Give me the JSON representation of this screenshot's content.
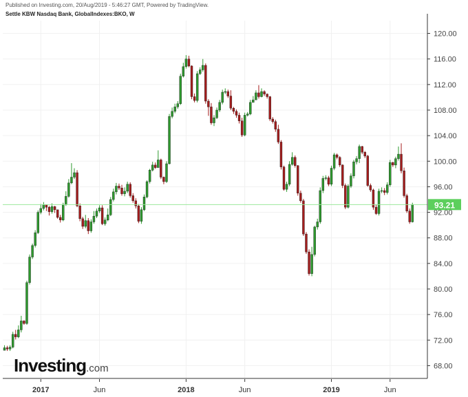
{
  "header": {
    "published": "Published on Investing.com, 20/Aug/2019 - 5:46:27 GMT, Powered by TradingView.",
    "subtitle": "Settle KBW Nasdaq Bank, GlobalIndexes:BKO, W"
  },
  "logo": {
    "word": "Investing",
    "suffix": ".com"
  },
  "colors": {
    "up": "#2e9a2e",
    "down": "#a51d1d",
    "price_line": "#9be89b",
    "price_badge": "#5ccf5c",
    "grid": "#f0f0f0",
    "axis": "#333333"
  },
  "chart_data": {
    "type": "candlestick",
    "title": "Settle KBW Nasdaq Bank, GlobalIndexes:BKO, W",
    "xlabel": "",
    "ylabel": "",
    "ylim": [
      66,
      122
    ],
    "y_ticks": [
      "68.00",
      "72.00",
      "76.00",
      "80.00",
      "84.00",
      "88.00",
      "92.00",
      "96.00",
      "100.00",
      "104.00",
      "108.00",
      "112.00",
      "116.00",
      "120.00"
    ],
    "x_ticks": [
      {
        "label": "2017",
        "bold": true,
        "week": 13
      },
      {
        "label": "Jun",
        "bold": false,
        "week": 34
      },
      {
        "label": "2018",
        "bold": true,
        "week": 65
      },
      {
        "label": "Jun",
        "bold": false,
        "week": 86
      },
      {
        "label": "2019",
        "bold": true,
        "week": 117
      },
      {
        "label": "Jun",
        "bold": false,
        "week": 138
      }
    ],
    "last_price": "93.21",
    "last_value": 93.21,
    "grid": true,
    "closes": [
      70.8,
      70.6,
      70.9,
      72.9,
      72.5,
      73.6,
      75.0,
      74.6,
      81.0,
      85.0,
      86.8,
      88.8,
      92.0,
      92.6,
      93.2,
      92.8,
      92.1,
      92.9,
      92.4,
      91.2,
      90.8,
      93.2,
      94.5,
      96.6,
      97.5,
      98.2,
      93.0,
      91.0,
      89.8,
      90.7,
      89.1,
      90.5,
      91.4,
      92.2,
      92.7,
      90.2,
      90.8,
      91.6,
      94.0,
      95.2,
      96.1,
      95.8,
      94.9,
      95.3,
      96.4,
      94.6,
      93.8,
      93.0,
      90.6,
      92.4,
      94.4,
      96.8,
      98.6,
      99.4,
      99.0,
      100.2,
      97.5,
      96.8,
      99.6,
      107.0,
      107.8,
      108.5,
      109.0,
      113.3,
      114.8,
      116.0,
      114.9,
      110.1,
      109.5,
      113.7,
      114.3,
      115.0,
      109.4,
      108.5,
      106.0,
      106.8,
      108.0,
      109.2,
      110.8,
      110.9,
      110.2,
      108.3,
      107.8,
      107.2,
      106.3,
      104.1,
      107.2,
      107.4,
      109.2,
      109.6,
      110.7,
      110.1,
      110.9,
      110.5,
      110.1,
      106.6,
      106.2,
      105.0,
      103.0,
      99.1,
      95.6,
      96.4,
      99.5,
      100.6,
      99.3,
      95.0,
      93.8,
      88.6,
      85.8,
      82.4,
      85.4,
      89.7,
      90.5,
      95.4,
      97.3,
      97.4,
      96.4,
      98.9,
      101.0,
      100.6,
      99.4,
      96.2,
      92.8,
      96.1,
      97.7,
      99.9,
      100.4,
      102.3,
      101.4,
      100.8,
      96.2,
      95.5,
      92.8,
      91.8,
      95.3,
      95.4,
      95.1,
      96.3,
      99.8,
      99.4,
      100.4,
      101.1,
      98.5,
      94.6,
      92.2,
      90.5,
      93.21
    ],
    "highs": [
      71.2,
      71.1,
      71.2,
      73.3,
      73.6,
      74.3,
      75.8,
      75.1,
      81.3,
      85.4,
      87.1,
      89.2,
      92.3,
      93.3,
      93.6,
      93.2,
      93.0,
      93.4,
      93.0,
      92.1,
      91.6,
      93.5,
      95.3,
      97.2,
      99.7,
      98.9,
      98.6,
      93.4,
      91.3,
      91.6,
      91.1,
      90.9,
      92.2,
      92.6,
      93.1,
      93.1,
      91.2,
      92.6,
      94.4,
      95.7,
      96.6,
      96.5,
      96.3,
      95.9,
      96.8,
      96.7,
      95.0,
      94.2,
      93.3,
      92.8,
      94.8,
      97.0,
      98.8,
      99.9,
      99.8,
      101.7,
      100.4,
      97.6,
      100.0,
      107.4,
      108.4,
      109.0,
      109.4,
      113.7,
      115.4,
      116.6,
      116.5,
      115.0,
      110.6,
      114.1,
      114.7,
      116.0,
      115.3,
      109.7,
      109.1,
      107.2,
      108.4,
      109.6,
      111.2,
      111.4,
      111.2,
      111.1,
      108.5,
      108.1,
      107.6,
      106.8,
      107.6,
      107.7,
      109.6,
      110.2,
      111.1,
      111.9,
      111.4,
      111.1,
      110.6,
      110.2,
      106.9,
      106.5,
      105.7,
      103.3,
      99.3,
      96.8,
      100.0,
      101.4,
      100.9,
      99.4,
      95.4,
      94.1,
      88.9,
      86.2,
      86.6,
      89.9,
      91.0,
      95.9,
      97.7,
      97.8,
      97.7,
      99.3,
      101.3,
      101.2,
      100.8,
      99.5,
      96.5,
      96.4,
      98.1,
      100.2,
      100.8,
      102.6,
      102.4,
      101.6,
      101.0,
      96.5,
      95.7,
      93.2,
      95.7,
      95.9,
      95.8,
      96.7,
      100.2,
      99.9,
      100.7,
      102.3,
      102.8,
      99.0,
      94.9,
      92.6,
      93.5
    ],
    "lows": [
      70.5,
      70.3,
      70.3,
      70.7,
      72.1,
      72.3,
      73.2,
      74.4,
      74.4,
      80.7,
      84.7,
      86.5,
      88.6,
      91.7,
      92.3,
      92.2,
      91.5,
      91.8,
      91.9,
      91.0,
      90.4,
      90.6,
      93.0,
      94.3,
      96.4,
      97.2,
      92.8,
      90.6,
      89.4,
      89.5,
      88.6,
      88.8,
      90.2,
      91.1,
      91.9,
      90.0,
      89.9,
      90.6,
      91.4,
      93.7,
      94.8,
      95.5,
      94.6,
      94.5,
      95.0,
      94.3,
      93.5,
      92.6,
      90.3,
      90.2,
      92.2,
      94.2,
      96.5,
      98.4,
      98.8,
      99.0,
      97.2,
      96.4,
      96.6,
      99.5,
      106.7,
      107.5,
      108.2,
      108.8,
      113.1,
      114.5,
      114.7,
      109.7,
      109.2,
      109.2,
      113.5,
      114.0,
      109.0,
      107.1,
      105.7,
      105.5,
      106.6,
      107.7,
      108.9,
      110.5,
      109.9,
      108.0,
      107.4,
      106.8,
      105.9,
      103.8,
      103.9,
      107.0,
      107.2,
      109.3,
      109.8,
      109.8,
      110.0,
      110.2,
      109.8,
      106.3,
      105.9,
      104.6,
      102.7,
      98.7,
      95.4,
      95.2,
      96.1,
      99.3,
      99.0,
      94.6,
      93.5,
      88.3,
      85.5,
      82.1,
      82.0,
      85.1,
      89.3,
      90.2,
      95.0,
      97.0,
      96.1,
      96.1,
      98.6,
      100.3,
      99.1,
      95.8,
      92.5,
      92.6,
      95.8,
      97.3,
      99.5,
      99.7,
      101.1,
      100.5,
      96.0,
      95.2,
      92.4,
      91.6,
      91.5,
      95.0,
      94.7,
      94.8,
      96.0,
      99.1,
      98.9,
      100.1,
      98.1,
      94.3,
      91.9,
      90.2,
      90.4
    ]
  }
}
